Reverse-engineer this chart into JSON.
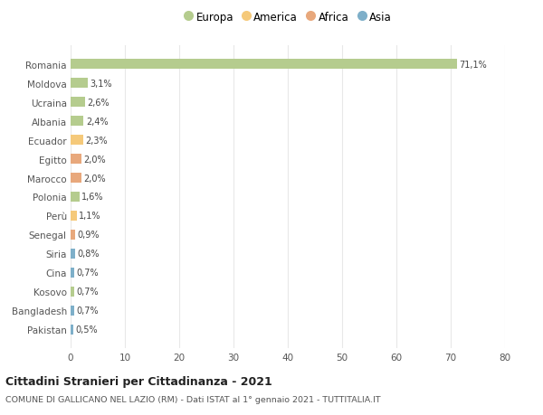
{
  "countries": [
    "Romania",
    "Moldova",
    "Ucraina",
    "Albania",
    "Ecuador",
    "Egitto",
    "Marocco",
    "Polonia",
    "Perù",
    "Senegal",
    "Siria",
    "Cina",
    "Kosovo",
    "Bangladesh",
    "Pakistan"
  ],
  "values": [
    71.1,
    3.1,
    2.6,
    2.4,
    2.3,
    2.0,
    2.0,
    1.6,
    1.1,
    0.9,
    0.8,
    0.7,
    0.7,
    0.7,
    0.5
  ],
  "labels": [
    "71,1%",
    "3,1%",
    "2,6%",
    "2,4%",
    "2,3%",
    "2,0%",
    "2,0%",
    "1,6%",
    "1,1%",
    "0,9%",
    "0,8%",
    "0,7%",
    "0,7%",
    "0,7%",
    "0,5%"
  ],
  "colors": [
    "#b5cc8e",
    "#b5cc8e",
    "#b5cc8e",
    "#b5cc8e",
    "#f5c97a",
    "#e8a87c",
    "#e8a87c",
    "#b5cc8e",
    "#f5c97a",
    "#e8a87c",
    "#7eafc9",
    "#7eafc9",
    "#b5cc8e",
    "#7eafc9",
    "#7eafc9"
  ],
  "legend_labels": [
    "Europa",
    "America",
    "Africa",
    "Asia"
  ],
  "legend_colors": [
    "#b5cc8e",
    "#f5c97a",
    "#e8a87c",
    "#7eafc9"
  ],
  "title": "Cittadini Stranieri per Cittadinanza - 2021",
  "subtitle": "COMUNE DI GALLICANO NEL LAZIO (RM) - Dati ISTAT al 1° gennaio 2021 - TUTTITALIA.IT",
  "xlim": [
    0,
    80
  ],
  "xticks": [
    0,
    10,
    20,
    30,
    40,
    50,
    60,
    70,
    80
  ],
  "bg_color": "#ffffff",
  "grid_color": "#e8e8e8",
  "bar_height": 0.55
}
